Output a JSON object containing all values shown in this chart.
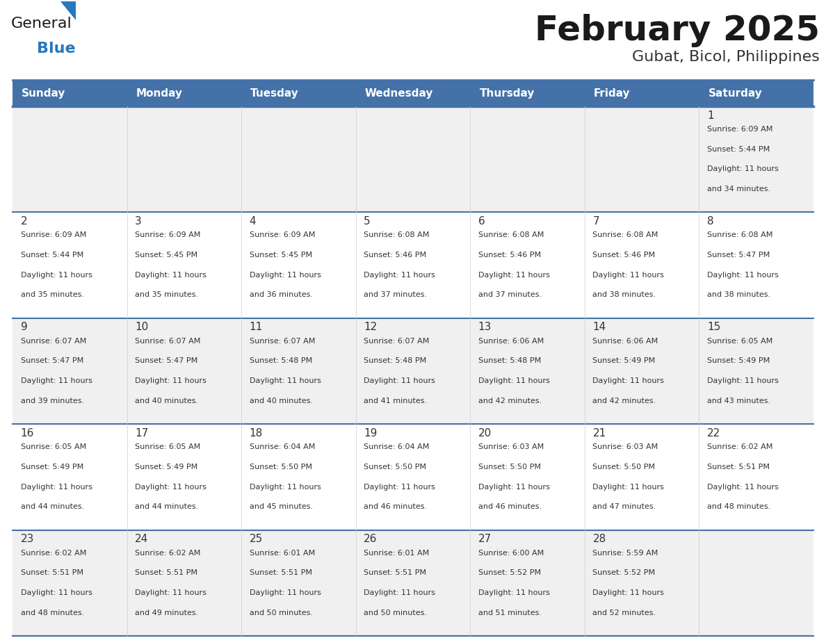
{
  "title": "February 2025",
  "subtitle": "Gubat, Bicol, Philippines",
  "header_bg": "#4472a8",
  "header_text": "#ffffff",
  "weekdays": [
    "Sunday",
    "Monday",
    "Tuesday",
    "Wednesday",
    "Thursday",
    "Friday",
    "Saturday"
  ],
  "row_bg_odd": "#f0f0f0",
  "row_bg_even": "#ffffff",
  "cell_border_color": "#4472a8",
  "day_number_color": "#333333",
  "info_text_color": "#333333",
  "logo_general_color": "#1a1a1a",
  "logo_blue_color": "#2878be",
  "logo_triangle_color": "#2878be",
  "calendar": [
    [
      null,
      null,
      null,
      null,
      null,
      null,
      1
    ],
    [
      2,
      3,
      4,
      5,
      6,
      7,
      8
    ],
    [
      9,
      10,
      11,
      12,
      13,
      14,
      15
    ],
    [
      16,
      17,
      18,
      19,
      20,
      21,
      22
    ],
    [
      23,
      24,
      25,
      26,
      27,
      28,
      null
    ]
  ],
  "sun_data": {
    "1": {
      "rise": "6:09 AM",
      "set": "5:44 PM",
      "hours": 11,
      "mins": 34
    },
    "2": {
      "rise": "6:09 AM",
      "set": "5:44 PM",
      "hours": 11,
      "mins": 35
    },
    "3": {
      "rise": "6:09 AM",
      "set": "5:45 PM",
      "hours": 11,
      "mins": 35
    },
    "4": {
      "rise": "6:09 AM",
      "set": "5:45 PM",
      "hours": 11,
      "mins": 36
    },
    "5": {
      "rise": "6:08 AM",
      "set": "5:46 PM",
      "hours": 11,
      "mins": 37
    },
    "6": {
      "rise": "6:08 AM",
      "set": "5:46 PM",
      "hours": 11,
      "mins": 37
    },
    "7": {
      "rise": "6:08 AM",
      "set": "5:46 PM",
      "hours": 11,
      "mins": 38
    },
    "8": {
      "rise": "6:08 AM",
      "set": "5:47 PM",
      "hours": 11,
      "mins": 38
    },
    "9": {
      "rise": "6:07 AM",
      "set": "5:47 PM",
      "hours": 11,
      "mins": 39
    },
    "10": {
      "rise": "6:07 AM",
      "set": "5:47 PM",
      "hours": 11,
      "mins": 40
    },
    "11": {
      "rise": "6:07 AM",
      "set": "5:48 PM",
      "hours": 11,
      "mins": 40
    },
    "12": {
      "rise": "6:07 AM",
      "set": "5:48 PM",
      "hours": 11,
      "mins": 41
    },
    "13": {
      "rise": "6:06 AM",
      "set": "5:48 PM",
      "hours": 11,
      "mins": 42
    },
    "14": {
      "rise": "6:06 AM",
      "set": "5:49 PM",
      "hours": 11,
      "mins": 42
    },
    "15": {
      "rise": "6:05 AM",
      "set": "5:49 PM",
      "hours": 11,
      "mins": 43
    },
    "16": {
      "rise": "6:05 AM",
      "set": "5:49 PM",
      "hours": 11,
      "mins": 44
    },
    "17": {
      "rise": "6:05 AM",
      "set": "5:49 PM",
      "hours": 11,
      "mins": 44
    },
    "18": {
      "rise": "6:04 AM",
      "set": "5:50 PM",
      "hours": 11,
      "mins": 45
    },
    "19": {
      "rise": "6:04 AM",
      "set": "5:50 PM",
      "hours": 11,
      "mins": 46
    },
    "20": {
      "rise": "6:03 AM",
      "set": "5:50 PM",
      "hours": 11,
      "mins": 46
    },
    "21": {
      "rise": "6:03 AM",
      "set": "5:50 PM",
      "hours": 11,
      "mins": 47
    },
    "22": {
      "rise": "6:02 AM",
      "set": "5:51 PM",
      "hours": 11,
      "mins": 48
    },
    "23": {
      "rise": "6:02 AM",
      "set": "5:51 PM",
      "hours": 11,
      "mins": 48
    },
    "24": {
      "rise": "6:02 AM",
      "set": "5:51 PM",
      "hours": 11,
      "mins": 49
    },
    "25": {
      "rise": "6:01 AM",
      "set": "5:51 PM",
      "hours": 11,
      "mins": 50
    },
    "26": {
      "rise": "6:01 AM",
      "set": "5:51 PM",
      "hours": 11,
      "mins": 50
    },
    "27": {
      "rise": "6:00 AM",
      "set": "5:52 PM",
      "hours": 11,
      "mins": 51
    },
    "28": {
      "rise": "5:59 AM",
      "set": "5:52 PM",
      "hours": 11,
      "mins": 52
    }
  },
  "fig_width": 11.88,
  "fig_height": 9.18,
  "title_fontsize": 36,
  "subtitle_fontsize": 16,
  "header_day_fontsize": 11,
  "day_num_fontsize": 11,
  "info_fontsize": 8
}
